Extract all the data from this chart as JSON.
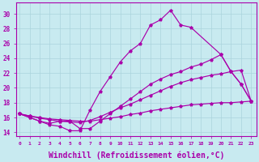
{
  "background_color": "#c8eaf0",
  "grid_color": "#aad4dc",
  "line_color": "#aa00aa",
  "xlabel": "Windchill (Refroidissement éolien,°C)",
  "xlabel_fontsize": 7,
  "yticks": [
    14,
    16,
    18,
    20,
    22,
    24,
    26,
    28,
    30
  ],
  "xticks": [
    0,
    1,
    2,
    3,
    4,
    5,
    6,
    7,
    8,
    9,
    10,
    11,
    12,
    13,
    14,
    15,
    16,
    17,
    18,
    19,
    20,
    21,
    22,
    23
  ],
  "xlim": [
    -0.3,
    23.5
  ],
  "ylim": [
    13.5,
    31.5
  ],
  "line1_x": [
    0,
    1,
    2,
    3,
    4,
    5,
    6,
    7,
    8,
    9,
    10,
    11,
    12,
    13,
    14,
    15,
    16,
    17,
    20,
    21,
    22,
    23
  ],
  "line1_y": [
    16.5,
    16.0,
    15.5,
    15.0,
    14.8,
    14.2,
    14.2,
    17.0,
    19.5,
    21.5,
    23.5,
    25.0,
    26.0,
    28.5,
    29.2,
    30.5,
    28.5,
    28.2,
    24.5,
    22.2,
    20.5,
    18.2
  ],
  "line2_x": [
    0,
    1,
    2,
    3,
    4,
    5,
    6,
    7,
    8,
    9,
    10,
    11,
    12,
    13,
    14,
    15,
    16,
    17,
    18,
    19,
    20,
    21,
    22,
    23
  ],
  "line2_y": [
    16.5,
    16.0,
    15.5,
    15.2,
    15.5,
    15.5,
    14.5,
    14.5,
    15.5,
    16.5,
    17.5,
    18.5,
    19.5,
    20.5,
    21.2,
    21.8,
    22.2,
    22.8,
    23.2,
    23.8,
    24.5,
    22.2,
    20.5,
    18.2
  ],
  "line3_x": [
    0,
    1,
    2,
    3,
    4,
    5,
    6,
    7,
    8,
    9,
    10,
    11,
    12,
    13,
    14,
    15,
    16,
    17,
    18,
    19,
    20,
    21,
    22,
    23
  ],
  "line3_y": [
    16.5,
    16.2,
    15.9,
    15.7,
    15.5,
    15.4,
    15.3,
    15.6,
    16.1,
    16.7,
    17.3,
    17.8,
    18.4,
    19.0,
    19.6,
    20.2,
    20.7,
    21.1,
    21.4,
    21.7,
    21.9,
    22.2,
    22.4,
    18.2
  ],
  "line4_x": [
    0,
    1,
    2,
    3,
    4,
    5,
    6,
    7,
    8,
    9,
    10,
    11,
    12,
    13,
    14,
    15,
    16,
    17,
    18,
    19,
    20,
    21,
    22,
    23
  ],
  "line4_y": [
    16.5,
    16.2,
    16.0,
    15.8,
    15.7,
    15.6,
    15.5,
    15.5,
    15.7,
    15.9,
    16.1,
    16.4,
    16.6,
    16.9,
    17.1,
    17.3,
    17.5,
    17.7,
    17.8,
    17.9,
    18.0,
    18.0,
    18.1,
    18.2
  ]
}
